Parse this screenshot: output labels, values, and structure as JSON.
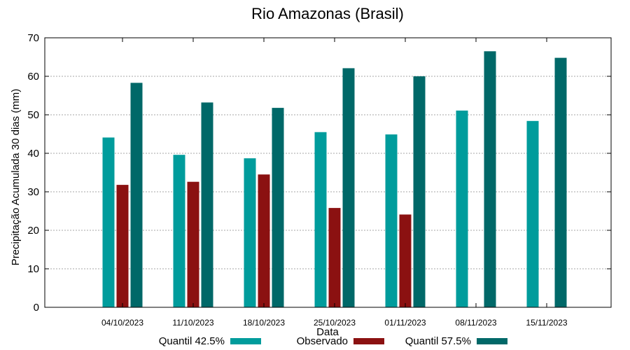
{
  "chart_data": {
    "type": "bar",
    "title": "Rio Amazonas (Brasil)",
    "xlabel": "Data",
    "ylabel": "Precipitação Acumulada 30 dias (mm)",
    "ylim": [
      0,
      70
    ],
    "yticks": [
      "0",
      "10",
      "20",
      "30",
      "40",
      "50",
      "60",
      "70"
    ],
    "grid": true,
    "legend_position": "bottom",
    "categories": [
      "04/10/2023",
      "11/10/2023",
      "18/10/2023",
      "25/10/2023",
      "01/11/2023",
      "08/11/2023",
      "15/11/2023"
    ],
    "series": [
      {
        "name": "Quantil 42.5%",
        "color": "#009c9c",
        "values": [
          44.1,
          39.6,
          38.7,
          45.5,
          44.9,
          51.1,
          48.4
        ]
      },
      {
        "name": "Observado",
        "color": "#8b1111",
        "values": [
          31.8,
          32.6,
          34.5,
          25.8,
          24.1,
          null,
          null
        ]
      },
      {
        "name": "Quantil 57.5%",
        "color": "#006868",
        "values": [
          58.3,
          53.2,
          51.8,
          62.1,
          60.0,
          66.5,
          64.8
        ]
      }
    ]
  }
}
